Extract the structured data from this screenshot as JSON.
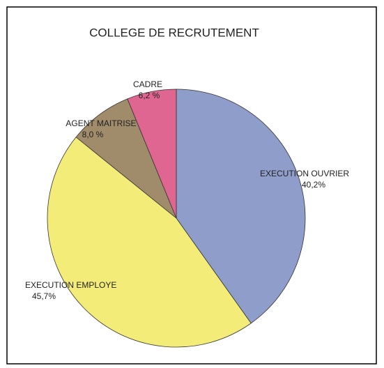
{
  "chart_data": {
    "type": "pie",
    "title": "COLLEGE DE RECRUTEMENT",
    "categories": [
      "EXECUTION OUVRIER",
      "EXECUTION EMPLOYE",
      "AGENT MAITRISE",
      "CADRE"
    ],
    "values": [
      40.2,
      45.7,
      8.0,
      6.2
    ],
    "value_labels": [
      "40,2%",
      "45,7%",
      "8,0 %",
      "6,2 %"
    ],
    "colors": [
      "#8f9dca",
      "#f3ec78",
      "#a08b6b",
      "#df6690"
    ]
  }
}
